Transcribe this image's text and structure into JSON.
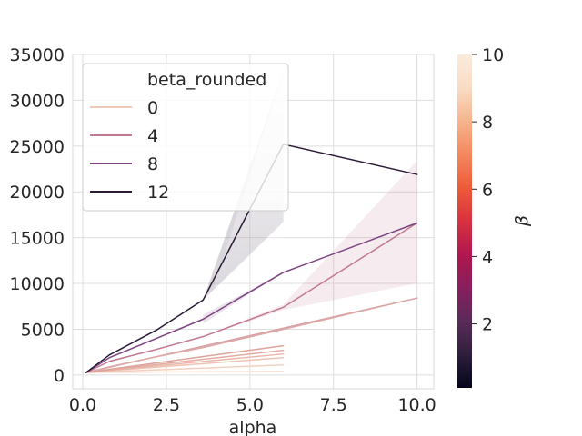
{
  "chart_data": {
    "type": "line",
    "xlabel": "alpha",
    "ylabel": "",
    "xlim": [
      -0.3,
      10.5
    ],
    "ylim": [
      -1500,
      35000
    ],
    "xticks": [
      {
        "value": 0.0,
        "label": "0.0"
      },
      {
        "value": 2.5,
        "label": "2.5"
      },
      {
        "value": 5.0,
        "label": "5.0"
      },
      {
        "value": 7.5,
        "label": "7.5"
      },
      {
        "value": 10.0,
        "label": "10.0"
      }
    ],
    "yticks": [
      {
        "value": 0,
        "label": "0"
      },
      {
        "value": 5000,
        "label": "5000"
      },
      {
        "value": 10000,
        "label": "10000"
      },
      {
        "value": 15000,
        "label": "15000"
      },
      {
        "value": 20000,
        "label": "20000"
      },
      {
        "value": 25000,
        "label": "25000"
      },
      {
        "value": 30000,
        "label": "30000"
      },
      {
        "value": 35000,
        "label": "35000"
      }
    ],
    "grid": true,
    "legend": {
      "title": "beta_rounded",
      "placement": "top-left",
      "entries": [
        {
          "label": "0",
          "color": "#f0c8b8"
        },
        {
          "label": "4",
          "color": "#c2798f"
        },
        {
          "label": "8",
          "color": "#7c4380"
        },
        {
          "label": "12",
          "color": "#2a1a36"
        }
      ]
    },
    "colorbar": {
      "label": "β",
      "min": 0.1,
      "max": 10,
      "ticks": [
        {
          "value": 2,
          "label": "2"
        },
        {
          "value": 4,
          "label": "4"
        },
        {
          "value": 6,
          "label": "6"
        },
        {
          "value": 8,
          "label": "8"
        },
        {
          "value": 10,
          "label": "10"
        }
      ],
      "stops": [
        "#03051a",
        "#2e1e3b",
        "#5a2b59",
        "#871f5e",
        "#b0174f",
        "#d8313f",
        "#ed5a37",
        "#f4875e",
        "#f6b48e",
        "#f9dcc4",
        "#faebdd"
      ]
    },
    "series": [
      {
        "x": [
          0.1,
          6.0
        ],
        "y": [
          280,
          400
        ],
        "color": "#f6dfd0",
        "width": 1.5
      },
      {
        "x": [
          0.1,
          6.0
        ],
        "y": [
          280,
          1100
        ],
        "color": "#f2d0c0",
        "width": 1.5
      },
      {
        "x": [
          0.1,
          6.0
        ],
        "y": [
          280,
          1900
        ],
        "color": "#eec3b3",
        "width": 1.5
      },
      {
        "x": [
          0.1,
          6.0
        ],
        "y": [
          280,
          2300
        ],
        "color": "#e8b8aa",
        "width": 1.5
      },
      {
        "x": [
          0.1,
          6.0
        ],
        "y": [
          280,
          2700
        ],
        "color": "#e3aca2",
        "width": 1.5
      },
      {
        "x": [
          0.1,
          6.0
        ],
        "y": [
          280,
          3200
        ],
        "color": "#dda39b",
        "width": 1.5
      },
      {
        "x": [
          0.1,
          10.0
        ],
        "y": [
          280,
          8400
        ],
        "color": "#d79fa3",
        "width": 1.5
      },
      {
        "x": [
          0.1,
          0.8,
          2.2,
          3.6,
          6.0,
          10.0
        ],
        "y": [
          280,
          900,
          2000,
          3000,
          5000,
          8400
        ],
        "color": "#dca8a8",
        "width": 1.5
      },
      {
        "x": [
          0.1,
          0.8,
          2.2,
          3.6,
          6.0,
          10.0
        ],
        "y": [
          280,
          1500,
          2800,
          4200,
          7400,
          16600
        ],
        "color": "#c2798f",
        "width": 1.5,
        "band": {
          "x": [
            3.6,
            6.0,
            10.0
          ],
          "low": [
            4200,
            7100,
            10000
          ],
          "high": [
            4200,
            7700,
            23400
          ],
          "color": "#c2798f",
          "opacity": 0.15
        }
      },
      {
        "x": [
          0.1,
          0.8,
          2.2,
          3.6,
          6.0,
          10.0
        ],
        "y": [
          280,
          1900,
          4000,
          6100,
          11200,
          16600
        ],
        "color": "#7c4380",
        "width": 1.5,
        "band": {
          "x": [
            3.6,
            6.0
          ],
          "low": [
            5600,
            11200
          ],
          "high": [
            6600,
            11200
          ],
          "color": "#7c4380",
          "opacity": 0.15
        }
      },
      {
        "x": [
          0.1,
          0.8,
          2.2,
          3.6,
          6.0,
          10.0
        ],
        "y": [
          280,
          2200,
          4900,
          8200,
          25200,
          21900
        ],
        "color": "#2a1a36",
        "width": 1.5,
        "band": {
          "x": [
            3.6,
            6.0
          ],
          "low": [
            8200,
            16700
          ],
          "high": [
            8200,
            33200
          ],
          "color": "#2a1a36",
          "opacity": 0.18
        }
      }
    ]
  }
}
